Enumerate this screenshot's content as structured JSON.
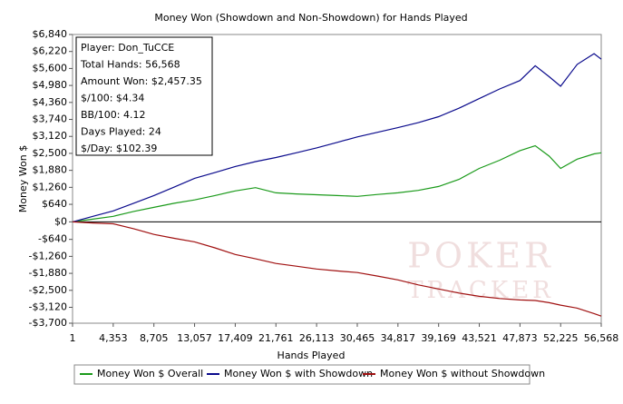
{
  "chart_data": {
    "type": "line",
    "title": "Money Won (Showdown and Non-Showdown) for Hands Played",
    "x_label": "Hands Played",
    "y_label": "Money Won $",
    "info": [
      "Player: Don_TuCCE",
      "Total Hands: 56,568",
      "Amount Won: $2,457.35",
      "$/100: $4.34",
      "BB/100: 4.12",
      "Days Played: 24",
      "$/Day: $102.39"
    ],
    "watermark": [
      "POKER",
      "TRACKER"
    ],
    "x": [
      1,
      2176,
      4353,
      6529,
      8705,
      10881,
      13057,
      15233,
      17409,
      19585,
      21761,
      23937,
      26113,
      28289,
      30465,
      32641,
      34817,
      36993,
      39169,
      41345,
      43521,
      45697,
      47873,
      49500,
      51000,
      52225,
      54000,
      55800,
      56568
    ],
    "series": [
      {
        "name": "Money Won $ Overall",
        "color": "#1a9a1a",
        "values": [
          0,
          100,
          200,
          380,
          530,
          680,
          800,
          960,
          1130,
          1250,
          1060,
          1020,
          990,
          960,
          930,
          1000,
          1060,
          1150,
          1290,
          1550,
          1950,
          2250,
          2600,
          2780,
          2400,
          1950,
          2290,
          2480,
          2520
        ]
      },
      {
        "name": "Money Won $ with Showdown",
        "color": "#0a0a8c",
        "values": [
          0,
          200,
          400,
          680,
          960,
          1270,
          1590,
          1800,
          2020,
          2200,
          2350,
          2520,
          2700,
          2900,
          3100,
          3270,
          3440,
          3620,
          3840,
          4150,
          4500,
          4850,
          5160,
          5700,
          5300,
          4950,
          5750,
          6140,
          5940
        ]
      },
      {
        "name": "Money Won $ without Showdown",
        "color": "#a01010",
        "values": [
          0,
          -40,
          -70,
          -250,
          -460,
          -600,
          -730,
          -950,
          -1190,
          -1350,
          -1520,
          -1620,
          -1720,
          -1790,
          -1850,
          -1980,
          -2120,
          -2300,
          -2450,
          -2600,
          -2720,
          -2800,
          -2850,
          -2870,
          -2950,
          -3040,
          -3150,
          -3350,
          -3440
        ]
      }
    ],
    "xlim": [
      1,
      56568
    ],
    "xticks": [
      1,
      {
        "value": 4353,
        "label": "4,353"
      },
      {
        "value": 8705,
        "label": "8,705"
      },
      {
        "value": 13057,
        "label": "13,057"
      },
      {
        "value": 17409,
        "label": "17,409"
      },
      {
        "value": 21761,
        "label": "21,761"
      },
      {
        "value": 26113,
        "label": "26,113"
      },
      {
        "value": 30465,
        "label": "30,465"
      },
      {
        "value": 34817,
        "label": "34,817"
      },
      {
        "value": 39169,
        "label": "39,169"
      },
      {
        "value": 43521,
        "label": "43,521"
      },
      {
        "value": 47873,
        "label": "47,873"
      },
      {
        "value": 52225,
        "label": "52,225"
      },
      {
        "value": 56568,
        "label": "56,568"
      }
    ],
    "ylim": [
      -3700,
      6840
    ],
    "yticks": [
      {
        "value": 6840,
        "label": "$6,840"
      },
      {
        "value": 6220,
        "label": "$6,220"
      },
      {
        "value": 5600,
        "label": "$5,600"
      },
      {
        "value": 4980,
        "label": "$4,980"
      },
      {
        "value": 4360,
        "label": "$4,360"
      },
      {
        "value": 3740,
        "label": "$3,740"
      },
      {
        "value": 3120,
        "label": "$3,120"
      },
      {
        "value": 2500,
        "label": "$2,500"
      },
      {
        "value": 1880,
        "label": "$1,880"
      },
      {
        "value": 1260,
        "label": "$1,260"
      },
      {
        "value": 640,
        "label": "$640"
      },
      {
        "value": 0,
        "label": "$0"
      },
      {
        "value": -640,
        "label": "-$640"
      },
      {
        "value": -1260,
        "label": "-$1,260"
      },
      {
        "value": -1880,
        "label": "-$1,880"
      },
      {
        "value": -2500,
        "label": "-$2,500"
      },
      {
        "value": -3120,
        "label": "-$3,120"
      },
      {
        "value": -3700,
        "label": "-$3,700"
      }
    ],
    "legend": "bottom"
  }
}
